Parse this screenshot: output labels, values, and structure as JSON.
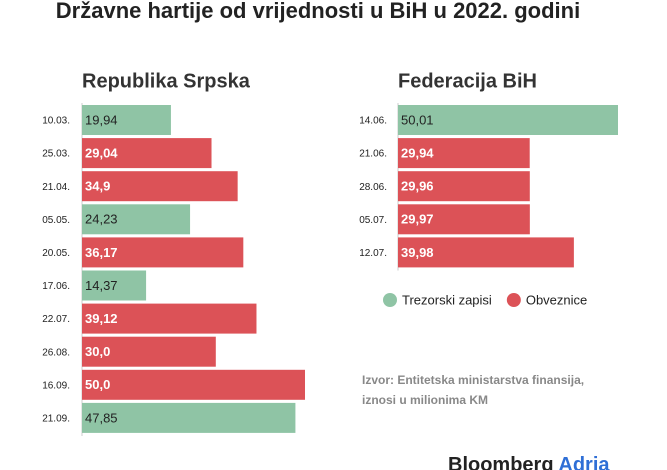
{
  "title": "Državne hartije od vrijednosti u BiH u 2022. godini",
  "source": [
    "Izvor: Entitetska ministarstva finansija,",
    "iznosi u milionima KM"
  ],
  "brand": [
    "Bloomberg",
    "Adria"
  ],
  "chart_data": [
    {
      "type": "bar",
      "orientation": "horizontal",
      "title": "Republika Srpska",
      "categories": [
        "10.03.",
        "25.03.",
        "21.04.",
        "05.05.",
        "20.05.",
        "17.06.",
        "22.07.",
        "26.08.",
        "16.09.",
        "21.09."
      ],
      "series": [
        {
          "color": "#8fc4a5",
          "values": [
            19.94,
            null,
            null,
            24.23,
            null,
            14.37,
            null,
            null,
            null,
            47.85
          ],
          "value_labels": [
            "19,94",
            null,
            null,
            "24,23",
            null,
            "14,37",
            null,
            null,
            null,
            "47,85"
          ]
        },
        {
          "color": "#dc5257",
          "values": [
            null,
            29.04,
            34.9,
            null,
            36.17,
            null,
            39.12,
            30,
            50,
            null
          ],
          "value_labels": [
            null,
            "29,04",
            "34,9",
            null,
            "36,17",
            null,
            "39,12",
            "30,0",
            "50,0",
            null
          ]
        }
      ]
    },
    {
      "type": "bar",
      "orientation": "horizontal",
      "title": "Federacija BiH",
      "categories": [
        "14.06.",
        "21.06.",
        "28.06.",
        "05.07.",
        "12.07."
      ],
      "series": [
        {
          "name": "Trezorski zapisi",
          "color": "#8fc4a5",
          "values": [
            50.01,
            null,
            null,
            null,
            null
          ],
          "value_labels": [
            "50,01",
            null,
            null,
            null,
            null
          ]
        },
        {
          "name": "Obveznice",
          "color": "#dc5257",
          "values": [
            null,
            29.94,
            29.96,
            29.97,
            39.98
          ],
          "value_labels": [
            null,
            "29,94",
            "29,96",
            "29,97",
            "39,98"
          ]
        }
      ]
    }
  ]
}
